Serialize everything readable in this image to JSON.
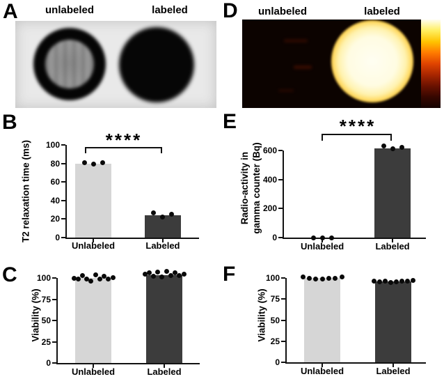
{
  "panels": {
    "a": {
      "letter": "A",
      "title_left": "unlabeled",
      "title_right": "labeled"
    },
    "b": {
      "letter": "B"
    },
    "c": {
      "letter": "C"
    },
    "d": {
      "letter": "D",
      "title_left": "unlabeled",
      "title_right": "labeled",
      "colorbar_stops": [
        "#fffef2",
        "#ffef60",
        "#ffc400",
        "#ff7b00",
        "#e04400",
        "#a82600",
        "#6b1200",
        "#360700",
        "#140200"
      ]
    },
    "e": {
      "letter": "E"
    },
    "f": {
      "letter": "F"
    }
  },
  "colors": {
    "bar_unlabeled": "#d6d6d6",
    "bar_labeled": "#3c3c3c",
    "axis": "#111111",
    "dot": "#0a0a0a",
    "mri_background": "#e9e9e9",
    "mri_ring": "#050505",
    "mri_dark_disc": "#060606",
    "heat_background": "#0c0300",
    "heat_noise": "#4a1000"
  },
  "chart_data": [
    {
      "id": "b",
      "type": "bar",
      "panel_letter": "B",
      "ylabel": "T2 relaxation time (ms)",
      "xlabel": "",
      "ylim": [
        0,
        105
      ],
      "yticks": [
        0,
        20,
        40,
        60,
        80,
        100
      ],
      "categories": [
        "Unlabeled",
        "Labeled"
      ],
      "values": [
        80,
        24
      ],
      "bar_colors": [
        "#d6d6d6",
        "#3c3c3c"
      ],
      "points": [
        [
          81,
          79.5,
          80.5
        ],
        [
          27,
          22.5,
          25
        ]
      ],
      "significance": "****",
      "grid": false,
      "legend": null
    },
    {
      "id": "e",
      "type": "bar",
      "panel_letter": "E",
      "ylabel": "Radio-activity in gamma counter (Bq)",
      "ylabel_lines": [
        "Radio-activity in",
        "gamma counter (Bq)"
      ],
      "xlabel": "",
      "ylim": [
        0,
        660
      ],
      "yticks": [
        0,
        200,
        400,
        600
      ],
      "categories": [
        "Unlabeled",
        "Labeled"
      ],
      "values": [
        0,
        614
      ],
      "bar_colors": [
        "#d6d6d6",
        "#3c3c3c"
      ],
      "points": [
        [
          0,
          0,
          0
        ],
        [
          631,
          613,
          620
        ]
      ],
      "significance": "****",
      "grid": false,
      "legend": null
    },
    {
      "id": "c",
      "type": "bar",
      "panel_letter": "C",
      "ylabel": "Viability (%)",
      "xlabel": "",
      "ylim": [
        0,
        112
      ],
      "yticks": [
        0,
        25,
        50,
        75,
        100
      ],
      "categories": [
        "Unlabeled",
        "Labeled"
      ],
      "values": [
        100,
        103.5
      ],
      "bar_colors": [
        "#d6d6d6",
        "#3c3c3c"
      ],
      "points": [
        [
          100,
          98.5,
          102.5,
          99,
          96.5,
          103.5,
          99,
          102,
          98.5,
          100.5
        ],
        [
          104.5,
          106.5,
          102,
          107,
          101.5,
          107.5,
          103,
          106.5,
          102.5,
          104.5
        ]
      ],
      "significance": null,
      "grid": false,
      "legend": null
    },
    {
      "id": "f",
      "type": "bar",
      "panel_letter": "F",
      "ylabel": "Viability (%)",
      "xlabel": "",
      "ylim": [
        0,
        112
      ],
      "yticks": [
        0,
        25,
        50,
        75,
        100
      ],
      "categories": [
        "Unlabeled",
        "Labeled"
      ],
      "values": [
        100,
        96
      ],
      "bar_colors": [
        "#d6d6d6",
        "#3c3c3c"
      ],
      "points": [
        [
          101,
          100,
          99,
          98.5,
          99.5,
          100,
          101
        ],
        [
          96.5,
          95.5,
          96,
          95,
          95.5,
          96,
          96.5,
          97
        ]
      ],
      "significance": null,
      "grid": false,
      "legend": null
    }
  ]
}
